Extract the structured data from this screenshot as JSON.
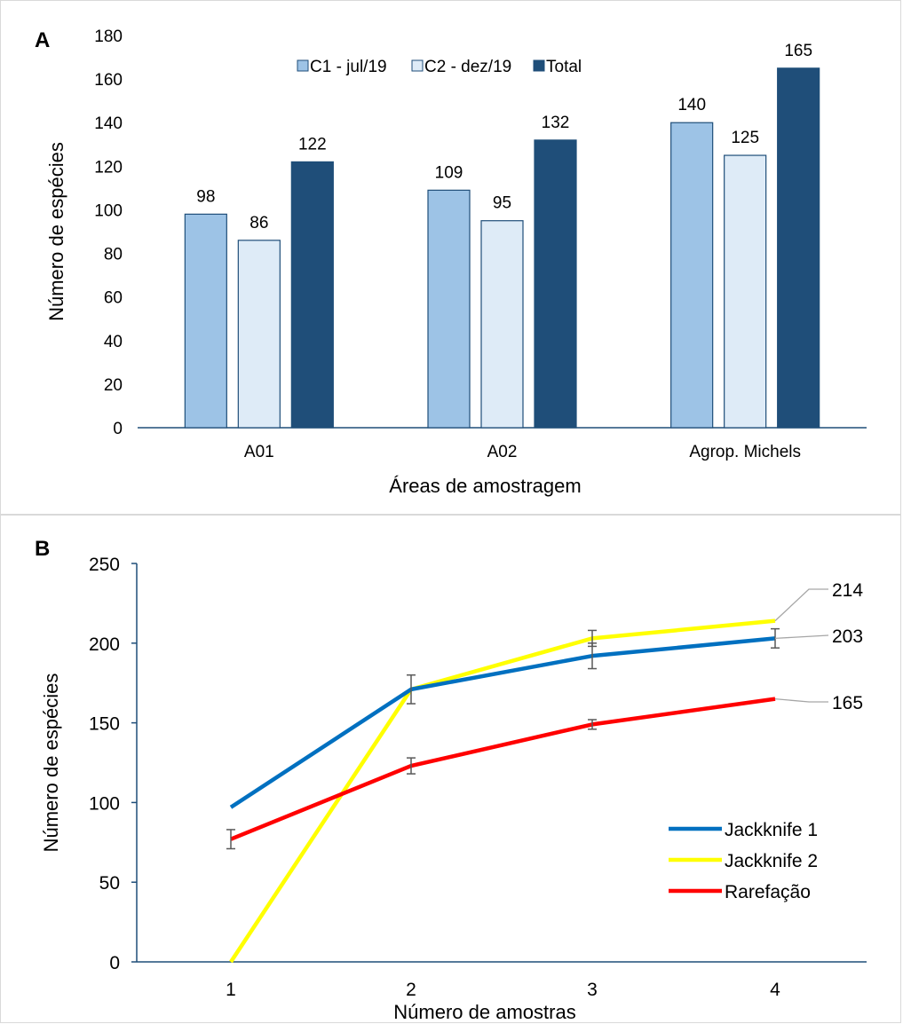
{
  "chart_data": [
    {
      "panel_label": "A",
      "type": "bar",
      "categories": [
        "A01",
        "A02",
        "Agrop. Michels"
      ],
      "series": [
        {
          "name": "C1 - jul/19",
          "values": [
            98,
            109,
            140
          ],
          "color": "#9dc3e6"
        },
        {
          "name": "C2 - dez/19",
          "values": [
            86,
            95,
            125
          ],
          "color": "#deebf7"
        },
        {
          "name": "Total",
          "values": [
            122,
            132,
            165
          ],
          "color": "#1f4e79"
        }
      ],
      "xlabel": "Áreas de amostragem",
      "ylabel": "Número de espécies",
      "ylim": [
        0,
        180
      ],
      "yticks": [
        0,
        20,
        40,
        60,
        80,
        100,
        120,
        140,
        160,
        180
      ],
      "legend": "top",
      "grid": false
    },
    {
      "panel_label": "B",
      "type": "line",
      "x": [
        1,
        2,
        3,
        4
      ],
      "series": [
        {
          "name": "Jackknife 1",
          "values": [
            97,
            171,
            192,
            203
          ],
          "color": "#0070c0",
          "error": [
            0,
            9,
            8,
            6
          ]
        },
        {
          "name": "Jackknife 2",
          "values": [
            0,
            171,
            203,
            214
          ],
          "color": "#ffff00",
          "error": [
            0,
            0,
            5,
            0
          ]
        },
        {
          "name": "Rarefação",
          "values": [
            77,
            123,
            149,
            165
          ],
          "color": "#ff0000",
          "error": [
            6,
            5,
            3,
            0
          ]
        }
      ],
      "end_labels": [
        "214",
        "203",
        "165"
      ],
      "xlabel": "Número de amostras",
      "ylabel": "Número de espécies",
      "ylim": [
        0,
        250
      ],
      "yticks": [
        0,
        50,
        100,
        150,
        200,
        250
      ],
      "xticks": [
        1,
        2,
        3,
        4
      ],
      "legend": "bottom-right",
      "grid": false
    }
  ]
}
